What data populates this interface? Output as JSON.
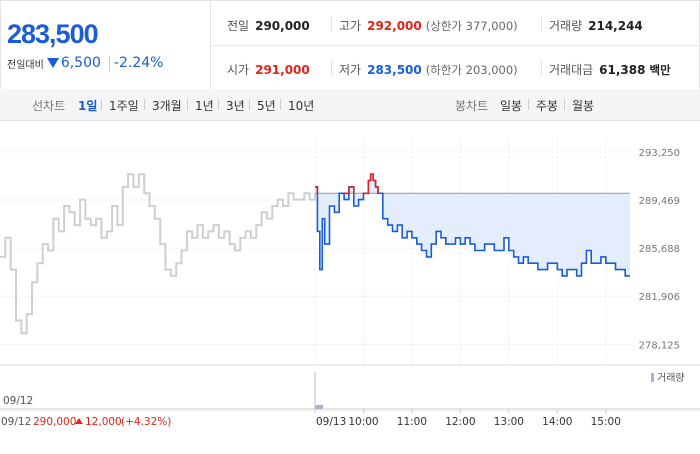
{
  "quote": {
    "current_price": "283,500",
    "change_label": "전일대비",
    "change_amount": "6,500",
    "change_pct": "-2.24%",
    "prev_close_label": "전일",
    "prev_close": "290,000",
    "high_label": "고가",
    "high": "292,000",
    "upper_limit": "(상한가 377,000)",
    "volume_label": "거래량",
    "volume": "214,244",
    "open_label": "시가",
    "open": "291,000",
    "low_label": "저가",
    "low": "283,500",
    "lower_limit": "(하한가 203,000)",
    "amount_label": "거래대금",
    "amount": "61,388",
    "amount_unit": "백만"
  },
  "colors": {
    "up": "#e0241b",
    "down": "#1a5dd6",
    "prev_day_line": "#cfcfcf",
    "fill": "#e3edfb"
  },
  "toolbar": {
    "line_label": "선차트",
    "line_periods": [
      "1일",
      "1주일",
      "3개월",
      "1년",
      "3년",
      "5년",
      "10년"
    ],
    "active_period": "1일",
    "candle_label": "봉차트",
    "candle_periods": [
      "일봉",
      "주봉",
      "월봉"
    ]
  },
  "volume_legend": "거래량",
  "footer": {
    "prev_date": "09/12",
    "prev_price": "290,000",
    "prev_change": "12,000",
    "prev_pct": "(+4.32%)"
  },
  "chart_data": {
    "type": "line",
    "y_ticks": [
      "293,250",
      "289,469",
      "285,688",
      "281,906",
      "278,125"
    ],
    "y_tick_values": [
      293250,
      289469,
      285688,
      281906,
      278125
    ],
    "x_tick_labels": [
      "09/13",
      "10:00",
      "11:00",
      "12:00",
      "13:00",
      "14:00",
      "15:00"
    ],
    "x_tick_hours": [
      9,
      10,
      11,
      12,
      13,
      14,
      15
    ],
    "ylim": [
      276500,
      294500
    ],
    "reference_price": 290000,
    "previous_day": {
      "date": "09/12",
      "values": [
        285000,
        286500,
        284000,
        280000,
        279000,
        280500,
        283000,
        284500,
        286000,
        285500,
        288000,
        287000,
        289000,
        288500,
        287500,
        289500,
        288000,
        287500,
        288000,
        286500,
        287000,
        289000,
        287500,
        290500,
        291500,
        290500,
        291500,
        290000,
        289000,
        288000,
        286000,
        284000,
        283500,
        284500,
        285500,
        287000,
        286500,
        287500,
        286500,
        287000,
        287500,
        286500,
        287000,
        286000,
        285500,
        286500,
        287000,
        286500,
        287500,
        288500,
        288000,
        289000,
        289500,
        289000,
        290000,
        289500,
        289500,
        290000,
        289500,
        290000
      ]
    },
    "today": {
      "date": "09/13",
      "times": [
        9.0,
        9.05,
        9.1,
        9.15,
        9.2,
        9.3,
        9.4,
        9.5,
        9.6,
        9.7,
        9.8,
        9.9,
        10.0,
        10.1,
        10.15,
        10.2,
        10.25,
        10.3,
        10.4,
        10.5,
        10.6,
        10.7,
        10.8,
        10.9,
        11.0,
        11.1,
        11.2,
        11.3,
        11.4,
        11.5,
        11.6,
        11.7,
        11.8,
        11.9,
        12.0,
        12.1,
        12.2,
        12.3,
        12.4,
        12.5,
        12.6,
        12.7,
        12.8,
        12.9,
        13.0,
        13.1,
        13.2,
        13.3,
        13.4,
        13.5,
        13.6,
        13.7,
        13.8,
        13.9,
        14.0,
        14.1,
        14.2,
        14.3,
        14.4,
        14.5,
        14.6,
        14.7,
        14.8,
        14.9,
        15.0,
        15.1,
        15.2,
        15.3,
        15.4,
        15.5
      ],
      "values": [
        290500,
        287000,
        284000,
        288000,
        286000,
        289000,
        288500,
        290000,
        289500,
        290500,
        289000,
        289500,
        290000,
        291000,
        291500,
        291000,
        290500,
        290000,
        288000,
        287500,
        287000,
        287500,
        286500,
        287000,
        286500,
        286000,
        285500,
        285000,
        286000,
        287000,
        286500,
        286000,
        286000,
        286500,
        286000,
        286500,
        286000,
        285500,
        285500,
        286000,
        286000,
        285500,
        285500,
        286500,
        285500,
        285000,
        284500,
        285000,
        284500,
        284500,
        284000,
        284000,
        284500,
        284500,
        284000,
        283500,
        284000,
        284000,
        283500,
        284500,
        285500,
        284500,
        284500,
        285000,
        284500,
        284500,
        284000,
        284000,
        283500,
        283500
      ]
    }
  }
}
